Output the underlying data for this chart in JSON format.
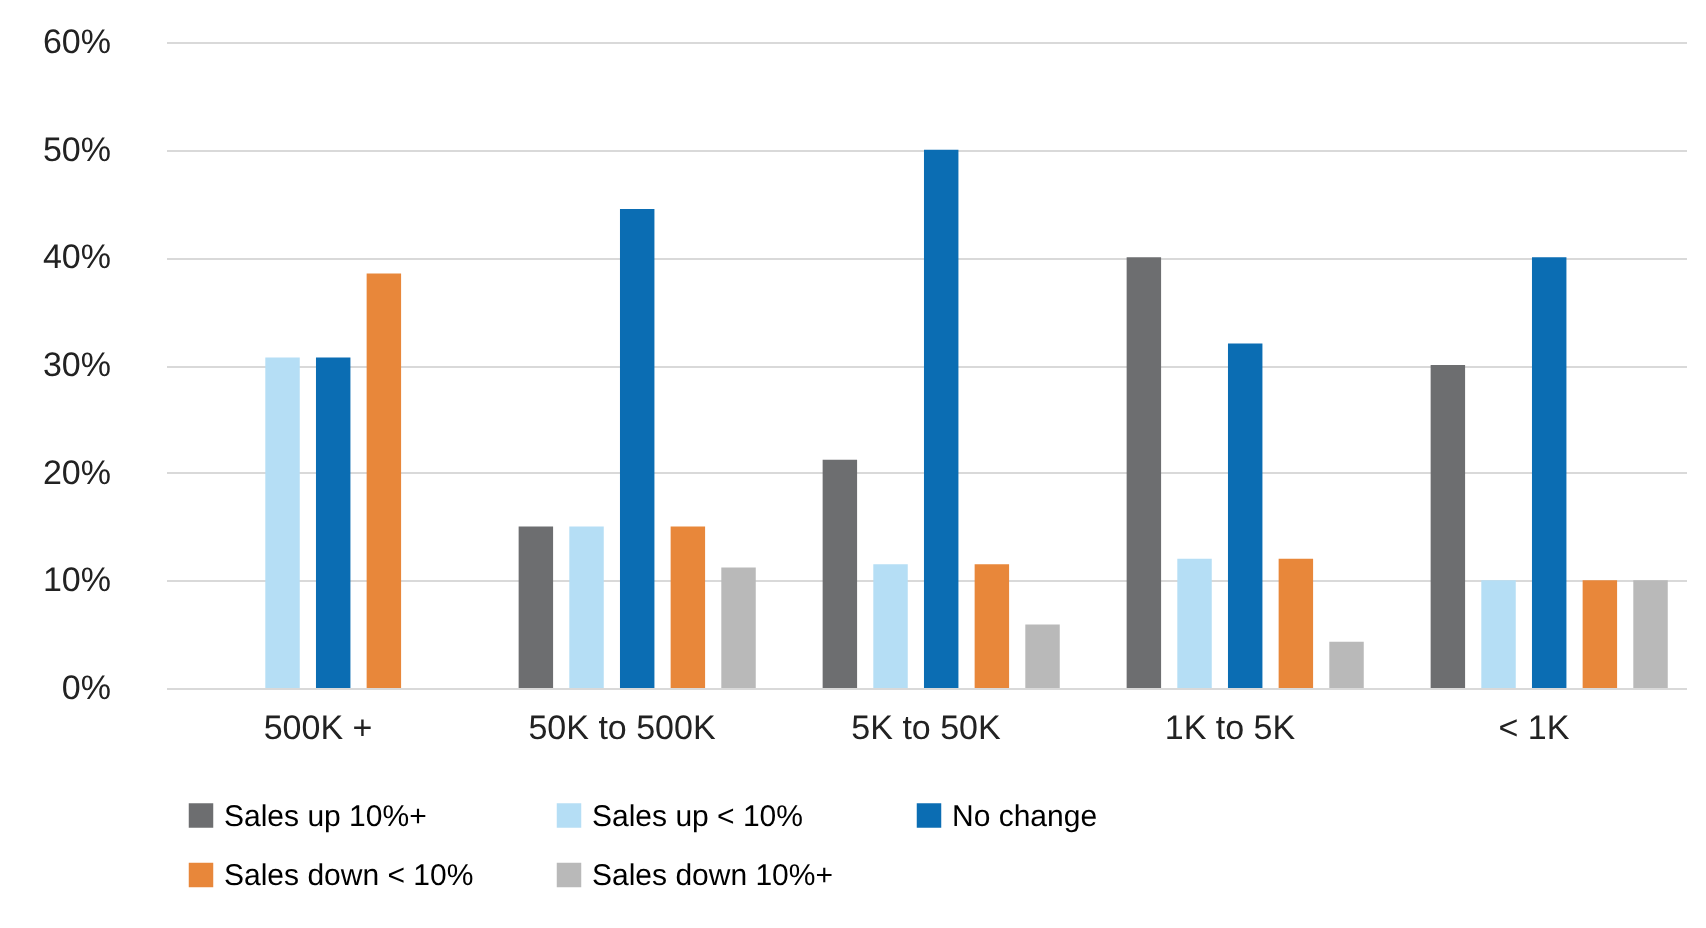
{
  "chart_data": {
    "type": "bar",
    "categories": [
      "500K +",
      "50K to 500K",
      "5K to 50K",
      "1K to 5K",
      "< 1K"
    ],
    "series": [
      {
        "name": "Sales up 10%+",
        "color": "#6d6e70",
        "values": [
          null,
          15,
          21.2,
          40,
          30
        ]
      },
      {
        "name": "Sales up < 10%",
        "color": "#b5def5",
        "values": [
          30.7,
          15,
          11.5,
          12,
          10
        ]
      },
      {
        "name": "No change",
        "color": "#0b6db3",
        "values": [
          30.7,
          44.5,
          50,
          32,
          40
        ]
      },
      {
        "name": "Sales down < 10%",
        "color": "#e8873a",
        "values": [
          38.5,
          15,
          11.5,
          12,
          10
        ]
      },
      {
        "name": "Sales down 10%+",
        "color": "#b9b9b9",
        "values": [
          null,
          11.2,
          5.9,
          4.3,
          10
        ]
      }
    ],
    "ylim": [
      0,
      60
    ],
    "yticks": [
      {
        "value": 0,
        "label": "0%"
      },
      {
        "value": 10,
        "label": "10%"
      },
      {
        "value": 20,
        "label": "20%"
      },
      {
        "value": 30,
        "label": "30%"
      },
      {
        "value": 40,
        "label": "40%"
      },
      {
        "value": 50,
        "label": "50%"
      },
      {
        "value": 60,
        "label": "60%"
      }
    ],
    "grid": "y",
    "legend": "bottom"
  }
}
